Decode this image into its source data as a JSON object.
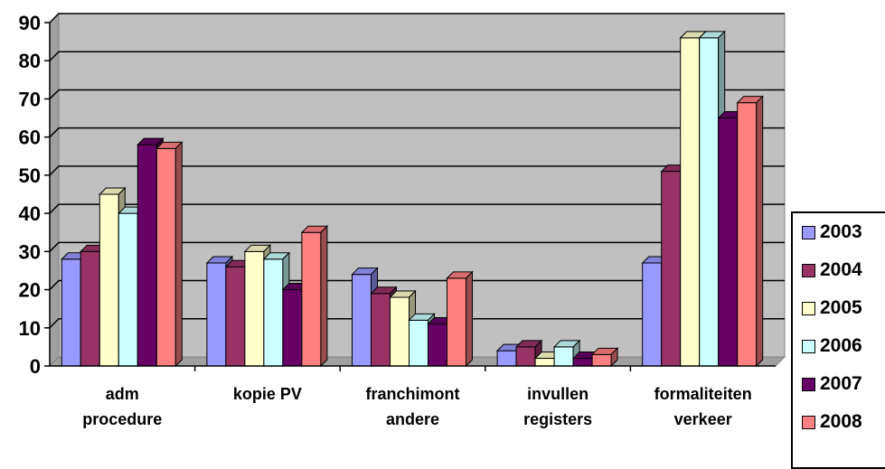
{
  "chart_data": {
    "type": "bar",
    "title": "",
    "xlabel": "",
    "ylabel": "",
    "ylim": [
      0,
      90
    ],
    "yticks": [
      "0",
      "10",
      "20",
      "30",
      "40",
      "50",
      "60",
      "70",
      "80",
      "90"
    ],
    "grid": true,
    "legend_position": "right",
    "categories": [
      [
        "adm",
        "procedure"
      ],
      [
        "kopie PV"
      ],
      [
        "franchimont",
        "andere"
      ],
      [
        "invullen",
        "registers"
      ],
      [
        "formaliteiten",
        "verkeer"
      ]
    ],
    "series": [
      {
        "name": "2003",
        "color": "#9999ff",
        "values": [
          28,
          27,
          24,
          4,
          27
        ]
      },
      {
        "name": "2004",
        "color": "#993366",
        "values": [
          30,
          26,
          19,
          5,
          51
        ]
      },
      {
        "name": "2005",
        "color": "#ffffcc",
        "values": [
          45,
          30,
          18,
          2,
          86
        ]
      },
      {
        "name": "2006",
        "color": "#ccffff",
        "values": [
          40,
          28,
          12,
          5,
          86
        ]
      },
      {
        "name": "2007",
        "color": "#660066",
        "values": [
          58,
          20,
          11,
          2,
          65
        ]
      },
      {
        "name": "2008",
        "color": "#ff8080",
        "values": [
          57,
          35,
          23,
          3,
          69
        ]
      }
    ]
  }
}
